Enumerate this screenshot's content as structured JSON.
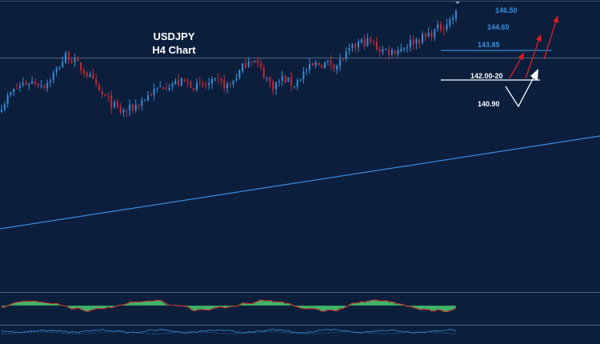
{
  "chart_title": {
    "line1": "USDJPY",
    "line2": "H4 Chart"
  },
  "colors": {
    "background": "#0b1f3d",
    "bull_candle": "#3a8fd6",
    "bear_candle": "#c62832",
    "trendline": "#3a8fe0",
    "resistance_line": "#3a8fe0",
    "support_line": "#ffffff",
    "projection_arrows": "#e31b23",
    "scenario_path": "#ffffff",
    "level_text_blue": "#3a8fe0",
    "level_text_white": "#ffffff",
    "oscillator_fill": "#3fb56a",
    "oscillator_signal": "#d9322c"
  },
  "levels": [
    {
      "label": "146.50",
      "color": "blue"
    },
    {
      "label": "144.60",
      "color": "blue"
    },
    {
      "label": "143.85",
      "color": "blue"
    },
    {
      "label": "142.00-20",
      "color": "white"
    },
    {
      "label": "140.90",
      "color": "white"
    }
  ],
  "chart_data": {
    "type": "candlestick",
    "title": "USDJPY H4 Chart",
    "instrument": "USDJPY",
    "timeframe": "H4",
    "price_path": [
      140.6,
      141.4,
      141.9,
      142.0,
      141.8,
      142.6,
      143.6,
      143.0,
      142.4,
      141.4,
      140.8,
      140.2,
      140.4,
      140.9,
      141.4,
      141.8,
      141.9,
      142.0,
      141.7,
      141.8,
      142.0,
      141.7,
      142.6,
      143.5,
      142.7,
      141.7,
      142.2,
      141.8,
      142.6,
      143.0,
      143.1,
      143.0,
      143.7,
      144.3,
      144.4,
      143.9,
      143.8,
      144.0,
      144.4,
      144.6,
      145.0,
      145.4,
      146.0
    ],
    "support_zone": "142.00-20",
    "resistance": "143.85",
    "scenario_low": "140.90",
    "targets": [
      "144.60",
      "146.50"
    ],
    "indicator": "oscillator histogram",
    "grid": false
  }
}
